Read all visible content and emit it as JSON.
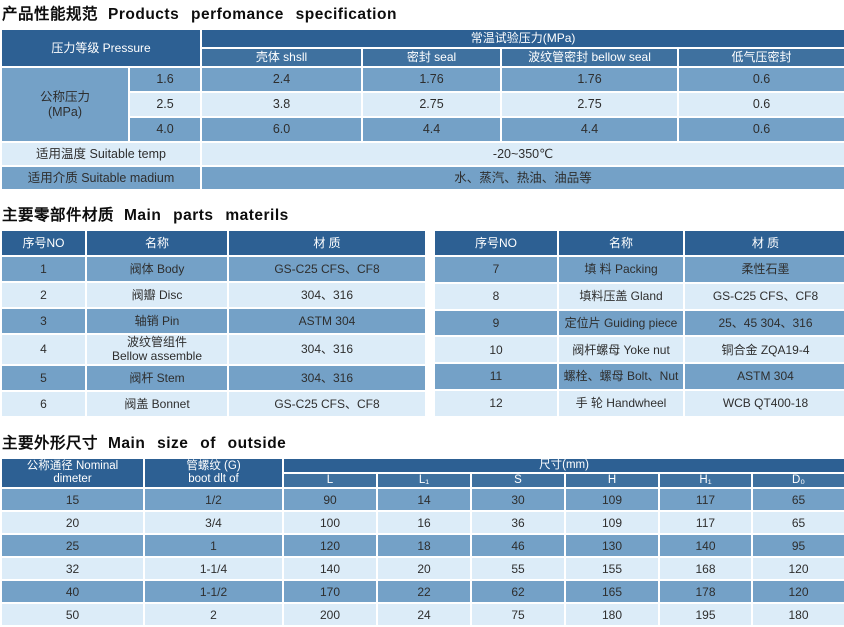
{
  "colors": {
    "header_dark": "#2d6093",
    "header_mid": "#3f719f",
    "row_medium": "#74a1c7",
    "row_light": "#dcecf8",
    "grid_line": "#ffffff",
    "header_text": "#ffffff",
    "cell_text": "#2e2e2e",
    "title_text": "#0d0d0d"
  },
  "sections": {
    "performance": {
      "title_zh": "产品性能规范",
      "title_en": "Products perfomance specification",
      "header": {
        "pressure_label": "压力等级 Pressure",
        "test_pressure": "常温试验压力(MPa)",
        "cols": [
          "壳体 shsll",
          "密封 seal",
          "波纹管密封 bellow seal",
          "低气压密封"
        ]
      },
      "nominal_label": "公称压力\n(MPa)",
      "rows": [
        {
          "pn": "1.6",
          "values": [
            "2.4",
            "1.76",
            "1.76",
            "0.6"
          ]
        },
        {
          "pn": "2.5",
          "values": [
            "3.8",
            "2.75",
            "2.75",
            "0.6"
          ]
        },
        {
          "pn": "4.0",
          "values": [
            "6.0",
            "4.4",
            "4.4",
            "0.6"
          ]
        }
      ],
      "temp_label": "适用温度 Suitable temp",
      "temp_value": "-20~350℃",
      "medium_label": "适用介质 Suitable madium",
      "medium_value": "水、蒸汽、热油、油品等"
    },
    "materials": {
      "title_zh": "主要零部件材质",
      "title_en": "Main parts materils",
      "headers": {
        "no": "序号NO",
        "name": "名称",
        "material": "材 质"
      },
      "left_rows": [
        [
          "1",
          "阀体 Body",
          "GS-C25 CFS、CF8"
        ],
        [
          "2",
          "阀瓣 Disc",
          "304、316"
        ],
        [
          "3",
          "轴销 Pin",
          "ASTM 304"
        ],
        [
          "4",
          "波纹管组件\nBellow assemble",
          "304、316"
        ],
        [
          "5",
          "阀杆 Stem",
          "304、316"
        ],
        [
          "6",
          "阀盖 Bonnet",
          "GS-C25 CFS、CF8"
        ]
      ],
      "right_rows": [
        [
          "7",
          "填 料 Packing",
          "柔性石墨"
        ],
        [
          "8",
          "填料压盖 Gland",
          "GS-C25 CFS、CF8"
        ],
        [
          "9",
          "定位片 Guiding piece",
          "25、45 304、316"
        ],
        [
          "10",
          "阀杆螺母 Yoke nut",
          "铜合金 ZQA19-4"
        ],
        [
          "11",
          "螺栓、螺母 Bolt、Nut",
          "ASTM 304"
        ],
        [
          "12",
          "手 轮 Handwheel",
          "WCB QT400-18"
        ]
      ]
    },
    "dimensions": {
      "title_zh": "主要外形尺寸",
      "title_en": "Main size of outside",
      "header": {
        "nominal": "公称通径 Nominal\ndimeter",
        "thread": "管螺纹 (G)\nboot dlt of",
        "size_group": "尺寸(mm)",
        "cols": [
          "L",
          "L₁",
          "S",
          "H",
          "H₁",
          "D₀"
        ]
      },
      "rows": [
        [
          "15",
          "1/2",
          "90",
          "14",
          "30",
          "109",
          "117",
          "65"
        ],
        [
          "20",
          "3/4",
          "100",
          "16",
          "36",
          "109",
          "117",
          "65"
        ],
        [
          "25",
          "1",
          "120",
          "18",
          "46",
          "130",
          "140",
          "95"
        ],
        [
          "32",
          "1-1/4",
          "140",
          "20",
          "55",
          "155",
          "168",
          "120"
        ],
        [
          "40",
          "1-1/2",
          "170",
          "22",
          "62",
          "165",
          "178",
          "120"
        ],
        [
          "50",
          "2",
          "200",
          "24",
          "75",
          "180",
          "195",
          "180"
        ]
      ]
    }
  }
}
